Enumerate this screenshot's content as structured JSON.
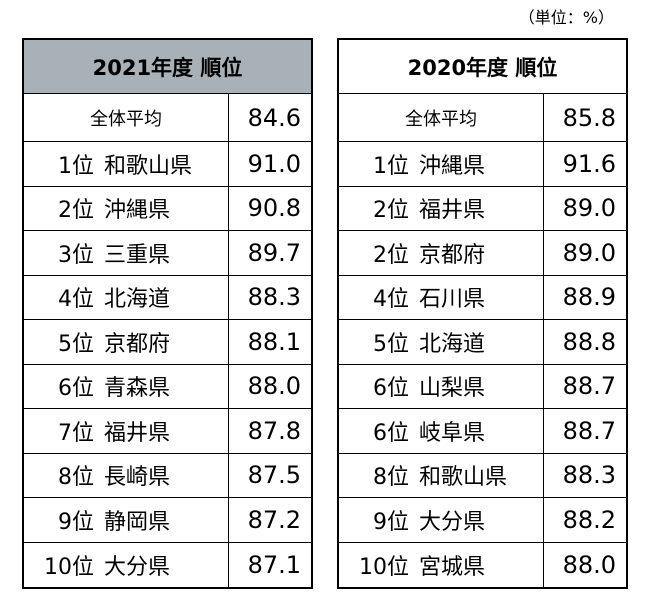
{
  "unit": "（単位：%）",
  "tables": [
    {
      "header": "2021年度 順位",
      "average_label": "全体平均",
      "average": "84.6",
      "rows": [
        [
          "1位",
          "和歌山県",
          "91.0"
        ],
        [
          "2位",
          "沖縄県",
          "90.8"
        ],
        [
          "3位",
          "三重県",
          "89.7"
        ],
        [
          "4位",
          "北海道",
          "88.3"
        ],
        [
          "5位",
          "京都府",
          "88.1"
        ],
        [
          "6位",
          "青森県",
          "88.0"
        ],
        [
          "7位",
          "福井県",
          "87.8"
        ],
        [
          "8位",
          "長崎県",
          "87.5"
        ],
        [
          "9位",
          "静岡県",
          "87.2"
        ],
        [
          "10位",
          "大分県",
          "87.1"
        ]
      ]
    },
    {
      "header": "2020年度 順位",
      "average_label": "全体平均",
      "average": "85.8",
      "rows": [
        [
          "1位",
          "沖縄県",
          "91.6"
        ],
        [
          "2位",
          "福井県",
          "89.0"
        ],
        [
          "2位",
          "京都府",
          "89.0"
        ],
        [
          "4位",
          "石川県",
          "88.9"
        ],
        [
          "5位",
          "北海道",
          "88.8"
        ],
        [
          "6位",
          "山梨県",
          "88.7"
        ],
        [
          "6位",
          "岐阜県",
          "88.7"
        ],
        [
          "8位",
          "和歌山県",
          "88.3"
        ],
        [
          "9位",
          "大分県",
          "88.2"
        ],
        [
          "10位",
          "宮城県",
          "88.0"
        ]
      ]
    }
  ]
}
